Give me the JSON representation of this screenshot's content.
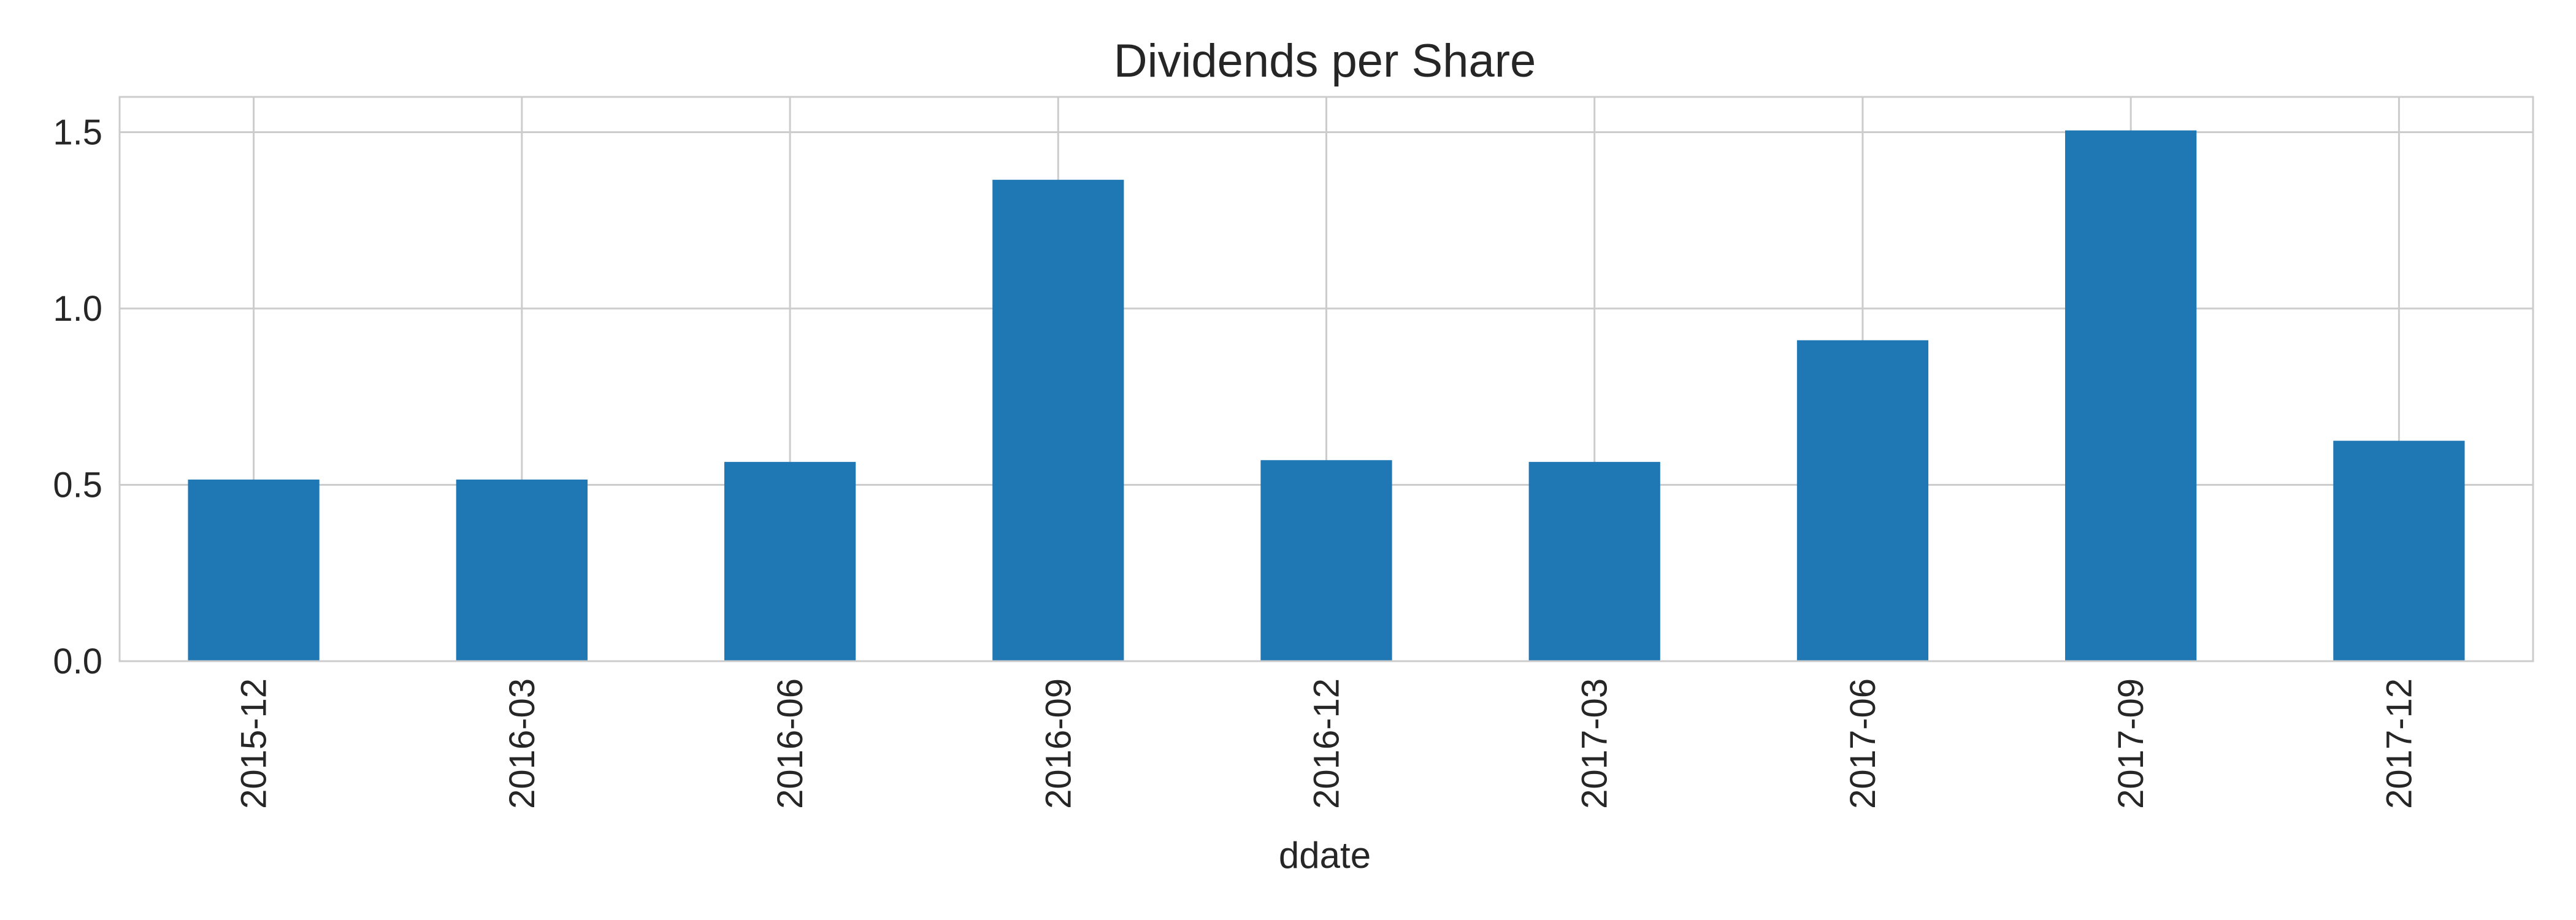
{
  "chart_data": {
    "type": "bar",
    "title": "Dividends per Share",
    "xlabel": "ddate",
    "ylabel": "",
    "categories": [
      "2015-12",
      "2016-03",
      "2016-06",
      "2016-09",
      "2016-12",
      "2017-03",
      "2017-06",
      "2017-09",
      "2017-12"
    ],
    "values": [
      0.515,
      0.515,
      0.565,
      1.365,
      0.57,
      0.565,
      0.91,
      1.505,
      0.625
    ],
    "ylim": [
      0,
      1.6
    ],
    "yticks": [
      0.0,
      0.5,
      1.0,
      1.5
    ],
    "ytick_labels": [
      "0.0",
      "0.5",
      "1.0",
      "1.5"
    ],
    "grid": true,
    "bar_color": "#1f77b4",
    "grid_color": "#cccccc",
    "text_color": "#262626"
  }
}
